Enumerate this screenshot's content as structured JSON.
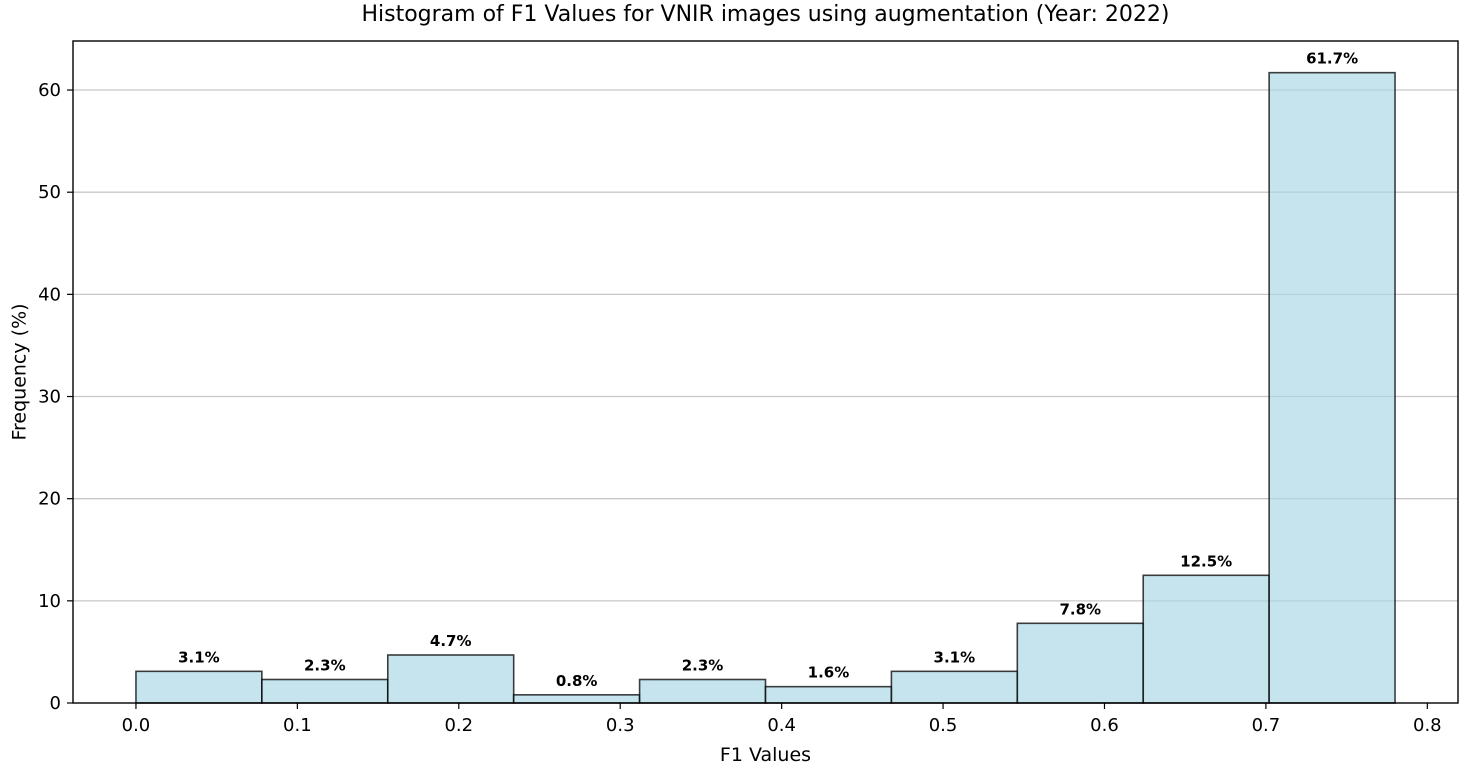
{
  "chart_data": {
    "type": "bar",
    "title": "Histogram of F1 Values for VNIR images using augmentation (Year: 2022)",
    "xlabel": "F1 Values",
    "ylabel": "Frequency (%)",
    "bins": [
      {
        "start": 0.0,
        "end": 0.078,
        "value": 3.1,
        "label": "3.1%"
      },
      {
        "start": 0.078,
        "end": 0.156,
        "value": 2.3,
        "label": "2.3%"
      },
      {
        "start": 0.156,
        "end": 0.234,
        "value": 4.7,
        "label": "4.7%"
      },
      {
        "start": 0.234,
        "end": 0.312,
        "value": 0.8,
        "label": "0.8%"
      },
      {
        "start": 0.312,
        "end": 0.39,
        "value": 2.3,
        "label": "2.3%"
      },
      {
        "start": 0.39,
        "end": 0.468,
        "value": 1.6,
        "label": "1.6%"
      },
      {
        "start": 0.468,
        "end": 0.546,
        "value": 3.1,
        "label": "3.1%"
      },
      {
        "start": 0.546,
        "end": 0.624,
        "value": 7.8,
        "label": "7.8%"
      },
      {
        "start": 0.624,
        "end": 0.702,
        "value": 12.5,
        "label": "12.5%"
      },
      {
        "start": 0.702,
        "end": 0.78,
        "value": 61.7,
        "label": "61.7%"
      }
    ],
    "xlim": [
      -0.039,
      0.819
    ],
    "ylim": [
      0,
      64.8
    ],
    "xticks": [
      0.0,
      0.1,
      0.2,
      0.3,
      0.4,
      0.5,
      0.6,
      0.7,
      0.8
    ],
    "xtick_labels": [
      "0.0",
      "0.1",
      "0.2",
      "0.3",
      "0.4",
      "0.5",
      "0.6",
      "0.7",
      "0.8"
    ],
    "yticks": [
      0,
      10,
      20,
      30,
      40,
      50,
      60
    ],
    "ytick_labels": [
      "0",
      "10",
      "20",
      "30",
      "40",
      "50",
      "60"
    ],
    "grid": "y-axis",
    "bar_color": "#add8e6",
    "bar_edge_color": "#000000"
  }
}
